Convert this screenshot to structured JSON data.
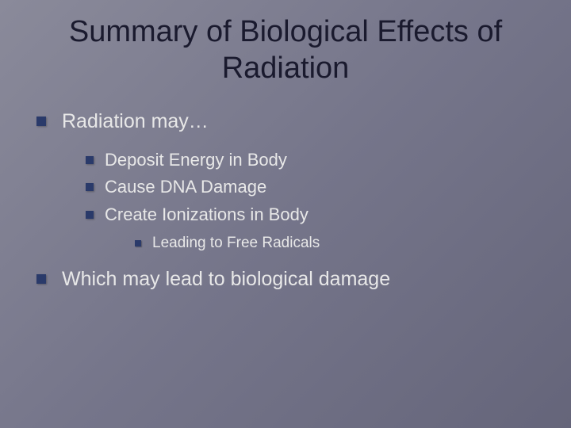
{
  "slide": {
    "title": "Summary of Biological Effects of Radiation",
    "bullets_l1": [
      {
        "text": "Radiation may…"
      },
      {
        "text": "Which may lead to biological damage"
      }
    ],
    "bullets_l2": [
      {
        "text": "Deposit Energy in Body"
      },
      {
        "text": "Cause DNA Damage"
      },
      {
        "text": "Create Ionizations in Body"
      }
    ],
    "bullets_l3": [
      {
        "text": "Leading to Free Radicals"
      }
    ]
  },
  "style": {
    "background_gradient": [
      "#8a8a9a",
      "#75758a",
      "#65657a"
    ],
    "title_color": "#1a1a2e",
    "title_fontsize": 38,
    "body_color": "#e8e8e8",
    "bullet_color": "#2a3a6a",
    "l1_fontsize": 25,
    "l2_fontsize": 22,
    "l3_fontsize": 19,
    "font_family": "Verdana"
  }
}
